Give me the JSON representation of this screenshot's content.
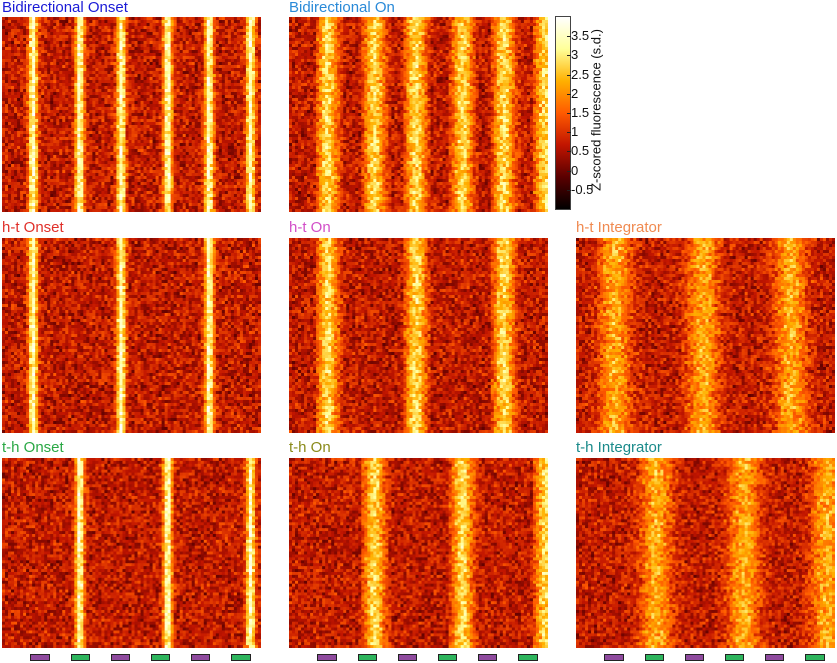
{
  "colorbar": {
    "label": "Z-scored fluorescence (s.d.)",
    "ticks": [
      "3.5",
      "3",
      "2.5",
      "2",
      "1.5",
      "1",
      "0.5",
      "0",
      "-0.5"
    ],
    "range": [
      -1,
      4
    ],
    "colormap": [
      "#000000",
      "#5a0000",
      "#c11500",
      "#ff5a00",
      "#ffb000",
      "#ffff99",
      "#ffffff"
    ]
  },
  "stimulus": {
    "sequence": [
      "purple",
      "green",
      "purple",
      "green",
      "purple",
      "green"
    ],
    "colors": {
      "purple": "#8e4a9e",
      "green": "#2db55d"
    }
  },
  "chart_data": [
    {
      "type": "heatmap",
      "title": "Bidirectional Onset",
      "title_color": "#1a1ad6",
      "pattern": "onset-all",
      "peaks": [
        0.12,
        0.3,
        0.46,
        0.64,
        0.8,
        0.96
      ]
    },
    {
      "type": "heatmap",
      "title": "Bidirectional On",
      "title_color": "#2a8ad8",
      "pattern": "on-all",
      "peaks": [
        0.12,
        0.3,
        0.46,
        0.64,
        0.8,
        0.96
      ]
    },
    {
      "type": "heatmap",
      "title": "h-t Onset",
      "title_color": "#e0302a",
      "pattern": "onset-heat",
      "peaks": [
        0.12,
        0.46,
        0.8
      ]
    },
    {
      "type": "heatmap",
      "title": "h-t On",
      "title_color": "#d24fc8",
      "pattern": "on-heat",
      "peaks": [
        0.12,
        0.46,
        0.8
      ]
    },
    {
      "type": "heatmap",
      "title": "h-t Integrator",
      "title_color": "#f08a50",
      "pattern": "integrator-heat",
      "peaks": [
        0.18,
        0.52,
        0.86
      ]
    },
    {
      "type": "heatmap",
      "title": "t-h Onset",
      "title_color": "#2aa845",
      "pattern": "onset-cold",
      "peaks": [
        0.3,
        0.64,
        0.96
      ]
    },
    {
      "type": "heatmap",
      "title": "t-h On",
      "title_color": "#8a8a1a",
      "pattern": "on-cold",
      "peaks": [
        0.3,
        0.64,
        0.96
      ]
    },
    {
      "type": "heatmap",
      "title": "t-h Integrator",
      "title_color": "#1a8a8a",
      "pattern": "integrator-cold",
      "peaks": [
        0.34,
        0.68,
        1.0
      ]
    }
  ]
}
